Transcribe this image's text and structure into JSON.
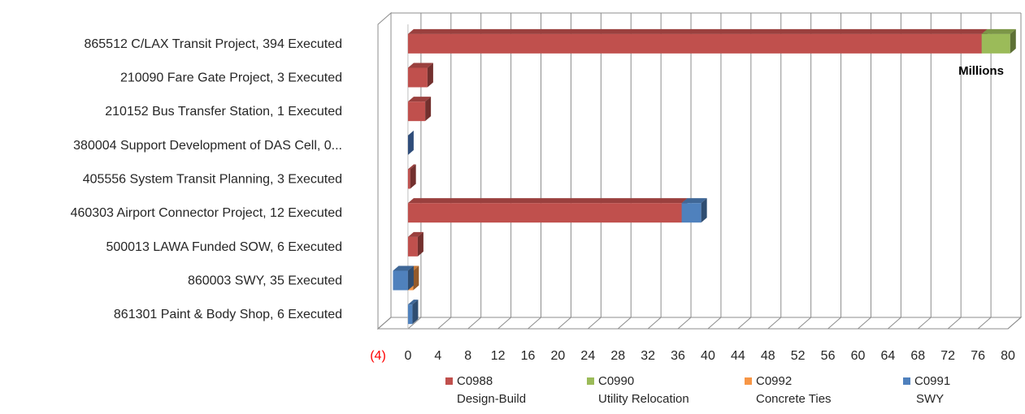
{
  "chart_data": {
    "type": "bar",
    "orientation": "horizontal",
    "stacked": true,
    "three_d": true,
    "categories": [
      "865512 C/LAX Transit Project, 394 Executed",
      "210090 Fare Gate Project, 3 Executed",
      "210152 Bus Transfer Station, 1 Executed",
      "380004 Support Development of DAS Cell, 0...",
      "405556 System Transit Planning, 3 Executed",
      "460303 Airport Connector Project, 12 Executed",
      "500013 LAWA Funded SOW, 6 Executed",
      "860003 SWY, 35 Executed",
      "861301 Paint & Body Shop, 6 Executed"
    ],
    "series": [
      {
        "name": "C0988 Design-Build",
        "line1": "C0988",
        "line2": "Design-Build",
        "color": "#c0504d",
        "values": [
          76.5,
          2.6,
          2.3,
          0,
          0.3,
          36.5,
          1.3,
          0,
          0
        ]
      },
      {
        "name": "C0990 Utility Relocation",
        "line1": "C0990",
        "line2": "Utility Relocation",
        "color": "#9bbb59",
        "values": [
          3.8,
          0,
          0,
          0,
          0,
          0,
          0,
          0,
          0
        ]
      },
      {
        "name": "C0992 Concrete Ties",
        "line1": "C0992",
        "line2": "Concrete Ties",
        "color": "#f79646",
        "values": [
          0,
          0,
          0,
          0,
          0,
          0,
          0,
          0.7,
          0
        ]
      },
      {
        "name": "C0991 SWY",
        "line1": "C0991",
        "line2": "SWY",
        "color": "#4f81bd",
        "values": [
          0,
          0,
          0,
          0,
          0,
          2.6,
          0,
          -2.0,
          0.6
        ]
      }
    ],
    "x_ticks": [
      "(4)",
      "0",
      "4",
      "8",
      "12",
      "16",
      "20",
      "24",
      "28",
      "32",
      "36",
      "40",
      "44",
      "48",
      "52",
      "56",
      "60",
      "64",
      "68",
      "72",
      "76",
      "80"
    ],
    "x_tick_values": [
      -4,
      0,
      4,
      8,
      12,
      16,
      20,
      24,
      28,
      32,
      36,
      40,
      44,
      48,
      52,
      56,
      60,
      64,
      68,
      72,
      76,
      80
    ],
    "xlim": [
      -4,
      80
    ],
    "unit_label": "Millions",
    "grid": true,
    "legend_position": "bottom",
    "negative_tick_color": "#ff0000"
  }
}
